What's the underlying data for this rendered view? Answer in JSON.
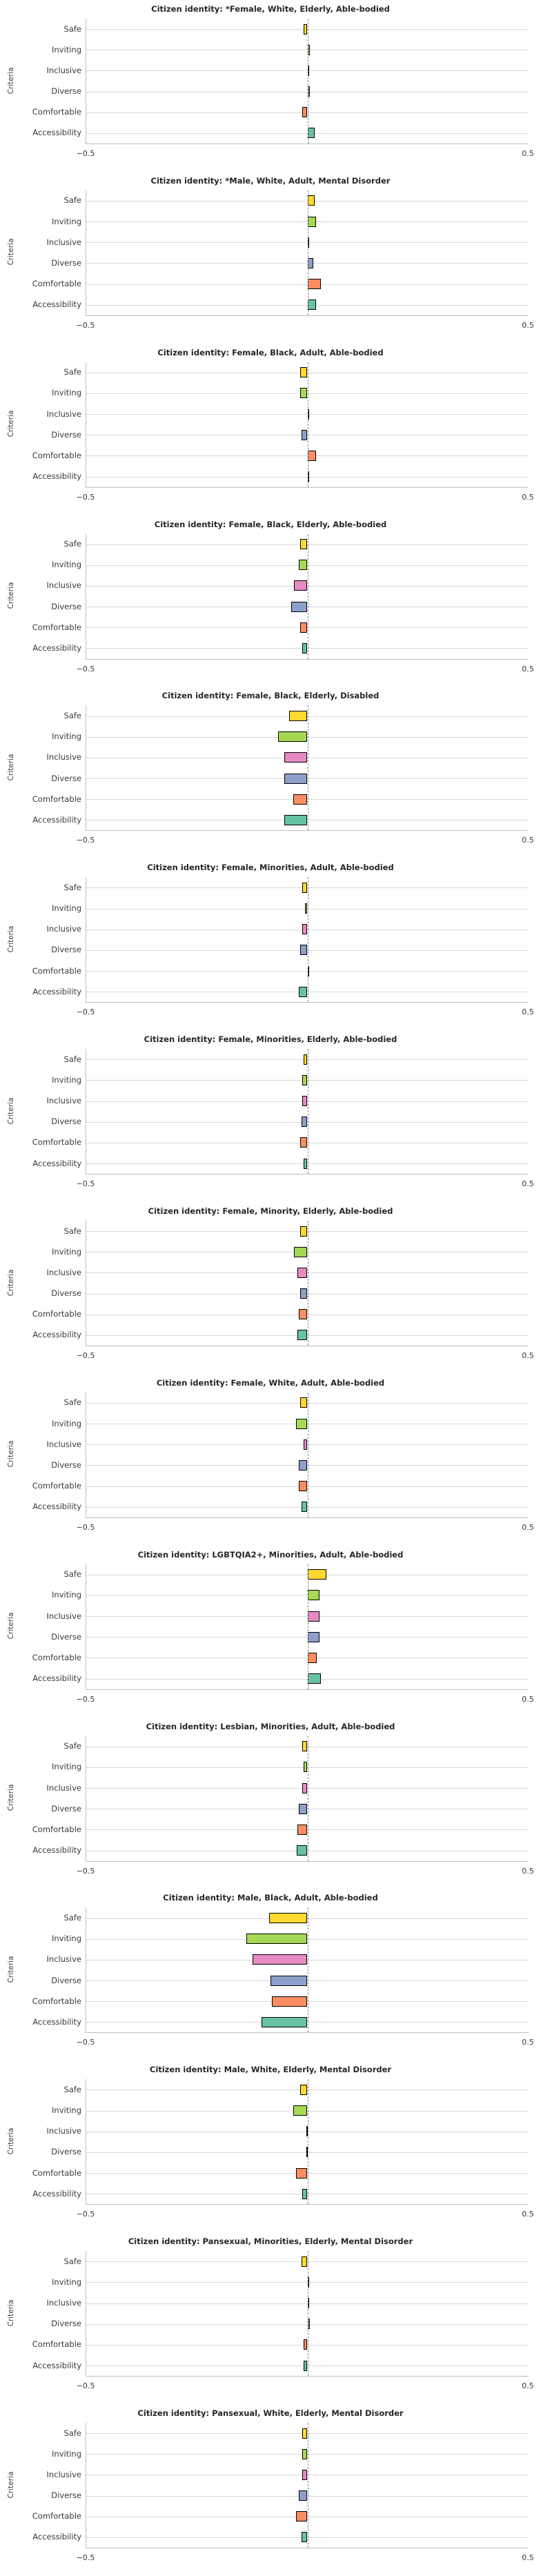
{
  "figure": {
    "description": "Column of 15 horizontal diverging bar charts, one per citizen identity",
    "background": "#ffffff"
  },
  "chart_config": {
    "type": "bar",
    "orientation": "horizontal",
    "ylabel": "Criteria",
    "categories": [
      "Safe",
      "Inviting",
      "Inclusive",
      "Diverse",
      "Comfortable",
      "Accessibility"
    ],
    "bar_colors": [
      "#FFD92F",
      "#A6D854",
      "#E78AC3",
      "#8DA0CB",
      "#FC8D62",
      "#66C2A5"
    ],
    "bar_edge_color": "#000000",
    "xlim": [
      -0.5,
      0.5
    ],
    "xtick_labels": [
      "−0.5",
      "0.5"
    ],
    "zero_line": {
      "style": "dashed",
      "color": "#8a8a8a"
    },
    "grid": "horizontal",
    "gridline_color": "#d9d9d9",
    "title_prefix": "Citizen identity: "
  },
  "chart_data": [
    {
      "type": "bar",
      "title": "Citizen identity: *Female, White, Elderly, Able-bodied",
      "categories": [
        "Safe",
        "Inviting",
        "Inclusive",
        "Diverse",
        "Comfortable",
        "Accessibility"
      ],
      "values": [
        -0.009,
        0.005,
        0.001,
        0.005,
        -0.011,
        0.016
      ]
    },
    {
      "type": "bar",
      "title": "Citizen identity: *Male, White, Adult, Mental Disorder",
      "categories": [
        "Safe",
        "Inviting",
        "Inclusive",
        "Diverse",
        "Comfortable",
        "Accessibility"
      ],
      "values": [
        0.017,
        0.019,
        0.003,
        0.013,
        0.031,
        0.02
      ]
    },
    {
      "type": "bar",
      "title": "Citizen identity: Female, Black, Adult, Able-bodied",
      "categories": [
        "Safe",
        "Inviting",
        "Inclusive",
        "Diverse",
        "Comfortable",
        "Accessibility"
      ],
      "values": [
        -0.016,
        -0.017,
        0.002,
        -0.014,
        0.02,
        0.003
      ]
    },
    {
      "type": "bar",
      "title": "Citizen identity: Female, Black, Elderly, Able-bodied",
      "categories": [
        "Safe",
        "Inviting",
        "Inclusive",
        "Diverse",
        "Comfortable",
        "Accessibility"
      ],
      "values": [
        -0.016,
        -0.02,
        -0.03,
        -0.037,
        -0.016,
        -0.012
      ]
    },
    {
      "type": "bar",
      "title": "Citizen identity: Female, Black, Elderly, Disabled",
      "categories": [
        "Safe",
        "Inviting",
        "Inclusive",
        "Diverse",
        "Comfortable",
        "Accessibility"
      ],
      "values": [
        -0.041,
        -0.067,
        -0.053,
        -0.053,
        -0.032,
        -0.053
      ]
    },
    {
      "type": "bar",
      "title": "Citizen identity: Female, Minorities, Adult, Able-bodied",
      "categories": [
        "Safe",
        "Inviting",
        "Inclusive",
        "Diverse",
        "Comfortable",
        "Accessibility"
      ],
      "values": [
        -0.012,
        -0.006,
        -0.011,
        -0.016,
        0.002,
        -0.019
      ]
    },
    {
      "type": "bar",
      "title": "Citizen identity: Female, Minorities, Elderly, Able-bodied",
      "categories": [
        "Safe",
        "Inviting",
        "Inclusive",
        "Diverse",
        "Comfortable",
        "Accessibility"
      ],
      "values": [
        -0.009,
        -0.012,
        -0.012,
        -0.014,
        -0.016,
        -0.009
      ]
    },
    {
      "type": "bar",
      "title": "Citizen identity: Female, Minority, Elderly, Able-bodied",
      "categories": [
        "Safe",
        "Inviting",
        "Inclusive",
        "Diverse",
        "Comfortable",
        "Accessibility"
      ],
      "values": [
        -0.016,
        -0.03,
        -0.023,
        -0.017,
        -0.02,
        -0.022
      ]
    },
    {
      "type": "bar",
      "title": "Citizen identity: Female, White, Adult, Able-bodied",
      "categories": [
        "Safe",
        "Inviting",
        "Inclusive",
        "Diverse",
        "Comfortable",
        "Accessibility"
      ],
      "values": [
        -0.017,
        -0.025,
        -0.009,
        -0.02,
        -0.02,
        -0.014
      ]
    },
    {
      "type": "bar",
      "title": "Citizen identity: LGBTQIA2+, Minorities, Adult, Able-bodied",
      "categories": [
        "Safe",
        "Inviting",
        "Inclusive",
        "Diverse",
        "Comfortable",
        "Accessibility"
      ],
      "values": [
        0.043,
        0.027,
        0.028,
        0.027,
        0.021,
        0.03
      ]
    },
    {
      "type": "bar",
      "title": "Citizen identity: Lesbian, Minorities, Adult, Able-bodied",
      "categories": [
        "Safe",
        "Inviting",
        "Inclusive",
        "Diverse",
        "Comfortable",
        "Accessibility"
      ],
      "values": [
        -0.012,
        -0.009,
        -0.011,
        -0.02,
        -0.022,
        -0.024
      ]
    },
    {
      "type": "bar",
      "title": "Citizen identity: Male, Black, Adult, Able-bodied",
      "categories": [
        "Safe",
        "Inviting",
        "Inclusive",
        "Diverse",
        "Comfortable",
        "Accessibility"
      ],
      "values": [
        -0.086,
        -0.138,
        -0.124,
        -0.084,
        -0.081,
        -0.104
      ]
    },
    {
      "type": "bar",
      "title": "Citizen identity: Male, White, Elderly, Mental Disorder",
      "categories": [
        "Safe",
        "Inviting",
        "Inclusive",
        "Diverse",
        "Comfortable",
        "Accessibility"
      ],
      "values": [
        -0.017,
        -0.032,
        -0.002,
        -0.002,
        -0.026,
        -0.011
      ]
    },
    {
      "type": "bar",
      "title": "Citizen identity: Pansexual, Minorities, Elderly, Mental Disorder",
      "categories": [
        "Safe",
        "Inviting",
        "Inclusive",
        "Diverse",
        "Comfortable",
        "Accessibility"
      ],
      "values": [
        -0.014,
        0.001,
        0.001,
        0.005,
        -0.008,
        -0.008
      ]
    },
    {
      "type": "bar",
      "title": "Citizen identity: Pansexual, White, Elderly, Mental Disorder",
      "categories": [
        "Safe",
        "Inviting",
        "Inclusive",
        "Diverse",
        "Comfortable",
        "Accessibility"
      ],
      "values": [
        -0.012,
        -0.012,
        -0.012,
        -0.019,
        -0.026,
        -0.014
      ]
    }
  ]
}
